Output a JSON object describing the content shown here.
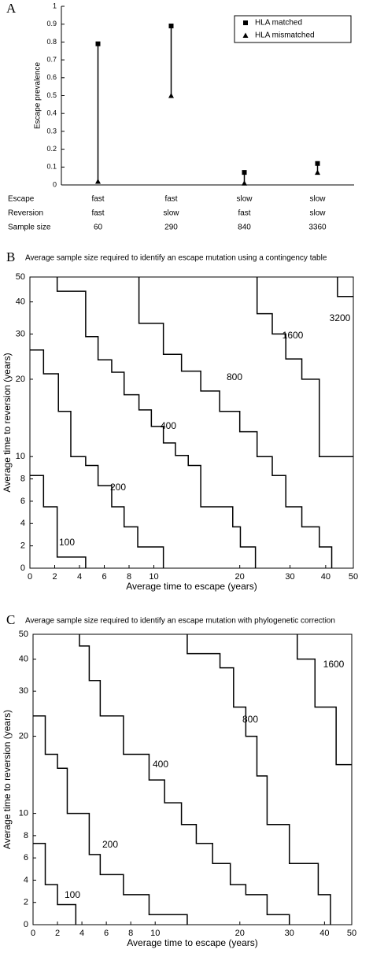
{
  "chart_data": [
    {
      "type": "range",
      "panel_label": "A",
      "ylabel": "Escape prevalence",
      "ylim": [
        0,
        1
      ],
      "yticks": [
        0,
        0.1,
        0.2,
        0.3,
        0.4,
        0.5,
        0.6,
        0.7,
        0.8,
        0.9,
        1
      ],
      "series": [
        {
          "name": "HLA matched",
          "marker": "square",
          "color": "#000000",
          "values": [
            0.79,
            0.89,
            0.07,
            0.12
          ]
        },
        {
          "name": "HLA mismatched",
          "marker": "triangle",
          "color": "#000000",
          "values": [
            0.02,
            0.5,
            0.01,
            0.07
          ]
        }
      ],
      "table": {
        "rows": [
          {
            "label": "Escape",
            "cells": [
              "fast",
              "fast",
              "slow",
              "slow"
            ]
          },
          {
            "label": "Reversion",
            "cells": [
              "fast",
              "slow",
              "fast",
              "slow"
            ]
          },
          {
            "label": "Sample size",
            "cells": [
              "60",
              "290",
              "840",
              "3360"
            ]
          }
        ]
      }
    },
    {
      "type": "contour",
      "panel_label": "B",
      "title": "Average sample size required to identify an escape mutation using a contingency table",
      "xlabel": "Average time to escape (years)",
      "ylabel": "Average time to reversion (years)",
      "xscale": "linlog",
      "yscale": "linlog",
      "linthresh": 10,
      "xlim": [
        0,
        50
      ],
      "ylim": [
        0,
        50
      ],
      "xticks": [
        0,
        2,
        4,
        6,
        8,
        10,
        20,
        30,
        40,
        50
      ],
      "yticks": [
        0,
        2,
        4,
        6,
        8,
        10,
        20,
        30,
        40,
        50
      ],
      "contours": [
        {
          "level": 100,
          "x": [
            0,
            1.1,
            1.1,
            2.2,
            2.2,
            4.5,
            4.5
          ],
          "y": [
            8.3,
            8.3,
            5.5,
            5.5,
            1,
            1,
            0
          ]
        },
        {
          "level": 200,
          "x": [
            0,
            1.1,
            1.1,
            2.3,
            2.3,
            3.3,
            3.3,
            4.5,
            4.5,
            5.5,
            5.5,
            6.6,
            6.6,
            7.6,
            7.6,
            8.7,
            8.7,
            10.8,
            10.8
          ],
          "y": [
            26,
            26,
            21,
            21,
            15,
            15,
            10,
            10,
            9.2,
            9.2,
            7.4,
            7.4,
            5.5,
            5.5,
            3.7,
            3.7,
            1.9,
            1.9,
            0
          ]
        },
        {
          "level": 400,
          "x": [
            2.2,
            2.2,
            4.5,
            4.5,
            5.5,
            5.5,
            6.6,
            6.6,
            7.6,
            7.6,
            8.8,
            8.8,
            9.8,
            9.8,
            10.8,
            10.8,
            11.9,
            11.9,
            13.2,
            13.2,
            14.6,
            14.6,
            18.9,
            18.9,
            20.1,
            20.1,
            22.7,
            22.7
          ],
          "y": [
            50,
            44,
            44,
            29.3,
            29.3,
            23.8,
            23.8,
            21.3,
            21.3,
            17.4,
            17.4,
            15.2,
            15.2,
            13.1,
            13.1,
            11.3,
            11.3,
            10.1,
            10.1,
            9.2,
            9.2,
            5.5,
            5.5,
            3.7,
            3.7,
            1.9,
            1.9,
            0
          ]
        },
        {
          "level": 800,
          "x": [
            8.8,
            8.8,
            10.8,
            10.8,
            12.5,
            12.5,
            14.6,
            14.6,
            17,
            17,
            20,
            20,
            23,
            23,
            26,
            26,
            29,
            29,
            33,
            33,
            38,
            38,
            42,
            42
          ],
          "y": [
            50,
            33,
            33,
            25,
            25,
            21.5,
            21.5,
            18,
            18,
            15,
            15,
            12.5,
            12.5,
            10,
            10,
            8.3,
            8.3,
            5.5,
            5.5,
            3.7,
            3.7,
            1.9,
            1.9,
            0
          ]
        },
        {
          "level": 1600,
          "x": [
            23,
            23,
            26,
            26,
            29,
            29,
            33,
            33,
            38,
            38,
            50
          ],
          "y": [
            50,
            36,
            36,
            30,
            30,
            24,
            24,
            20,
            20,
            10,
            10
          ]
        },
        {
          "level": 3200,
          "x": [
            44,
            44,
            50
          ],
          "y": [
            50,
            42,
            42
          ]
        }
      ]
    },
    {
      "type": "contour",
      "panel_label": "C",
      "title": "Average sample size required to identify an escape mutation with phylogenetic correction",
      "xlabel": "Average time to escape (years)",
      "ylabel": "Average time to reversion (years)",
      "xscale": "linlog",
      "yscale": "linlog",
      "linthresh": 10,
      "xlim": [
        0,
        50
      ],
      "ylim": [
        0,
        50
      ],
      "xticks": [
        0,
        2,
        4,
        6,
        8,
        10,
        20,
        30,
        40,
        50
      ],
      "yticks": [
        0,
        2,
        4,
        6,
        8,
        10,
        20,
        30,
        40,
        50
      ],
      "contours": [
        {
          "level": 100,
          "x": [
            0,
            1,
            1,
            2,
            2,
            3.5,
            3.5
          ],
          "y": [
            7.3,
            7.3,
            3.6,
            3.6,
            1.8,
            1.8,
            0
          ]
        },
        {
          "level": 200,
          "x": [
            0,
            1,
            1,
            2,
            2,
            2.8,
            2.8,
            4.6,
            4.6,
            5.5,
            5.5,
            7.4,
            7.4,
            9.5,
            9.5,
            13,
            13
          ],
          "y": [
            24,
            24,
            17,
            17,
            15,
            15,
            10,
            10,
            6.3,
            6.3,
            4.5,
            4.5,
            2.7,
            2.7,
            0.9,
            0.9,
            0
          ]
        },
        {
          "level": 400,
          "x": [
            3.8,
            3.8,
            4.6,
            4.6,
            5.5,
            5.5,
            7.4,
            7.4,
            9.5,
            9.5,
            10.8,
            10.8,
            12.4,
            12.4,
            14,
            14,
            16,
            16,
            18.5,
            18.5,
            21,
            21,
            25,
            25,
            30,
            30
          ],
          "y": [
            50,
            45,
            45,
            33,
            33,
            24,
            24,
            17,
            17,
            13.5,
            13.5,
            11,
            11,
            9,
            9,
            7.3,
            7.3,
            5.5,
            5.5,
            3.6,
            3.6,
            2.7,
            2.7,
            0.9,
            0.9,
            0
          ]
        },
        {
          "level": 800,
          "x": [
            13,
            13,
            17,
            17,
            19,
            19,
            21,
            21,
            23,
            23,
            25,
            25,
            30,
            30,
            38,
            38,
            42,
            42
          ],
          "y": [
            50,
            42,
            42,
            37,
            37,
            26,
            26,
            20,
            20,
            14,
            14,
            9,
            9,
            5.5,
            5.5,
            2.7,
            2.7,
            0
          ]
        },
        {
          "level": 1600,
          "x": [
            32,
            32,
            37,
            37,
            44,
            44,
            50
          ],
          "y": [
            50,
            40,
            40,
            26,
            26,
            15.5,
            15.5
          ]
        }
      ]
    }
  ]
}
